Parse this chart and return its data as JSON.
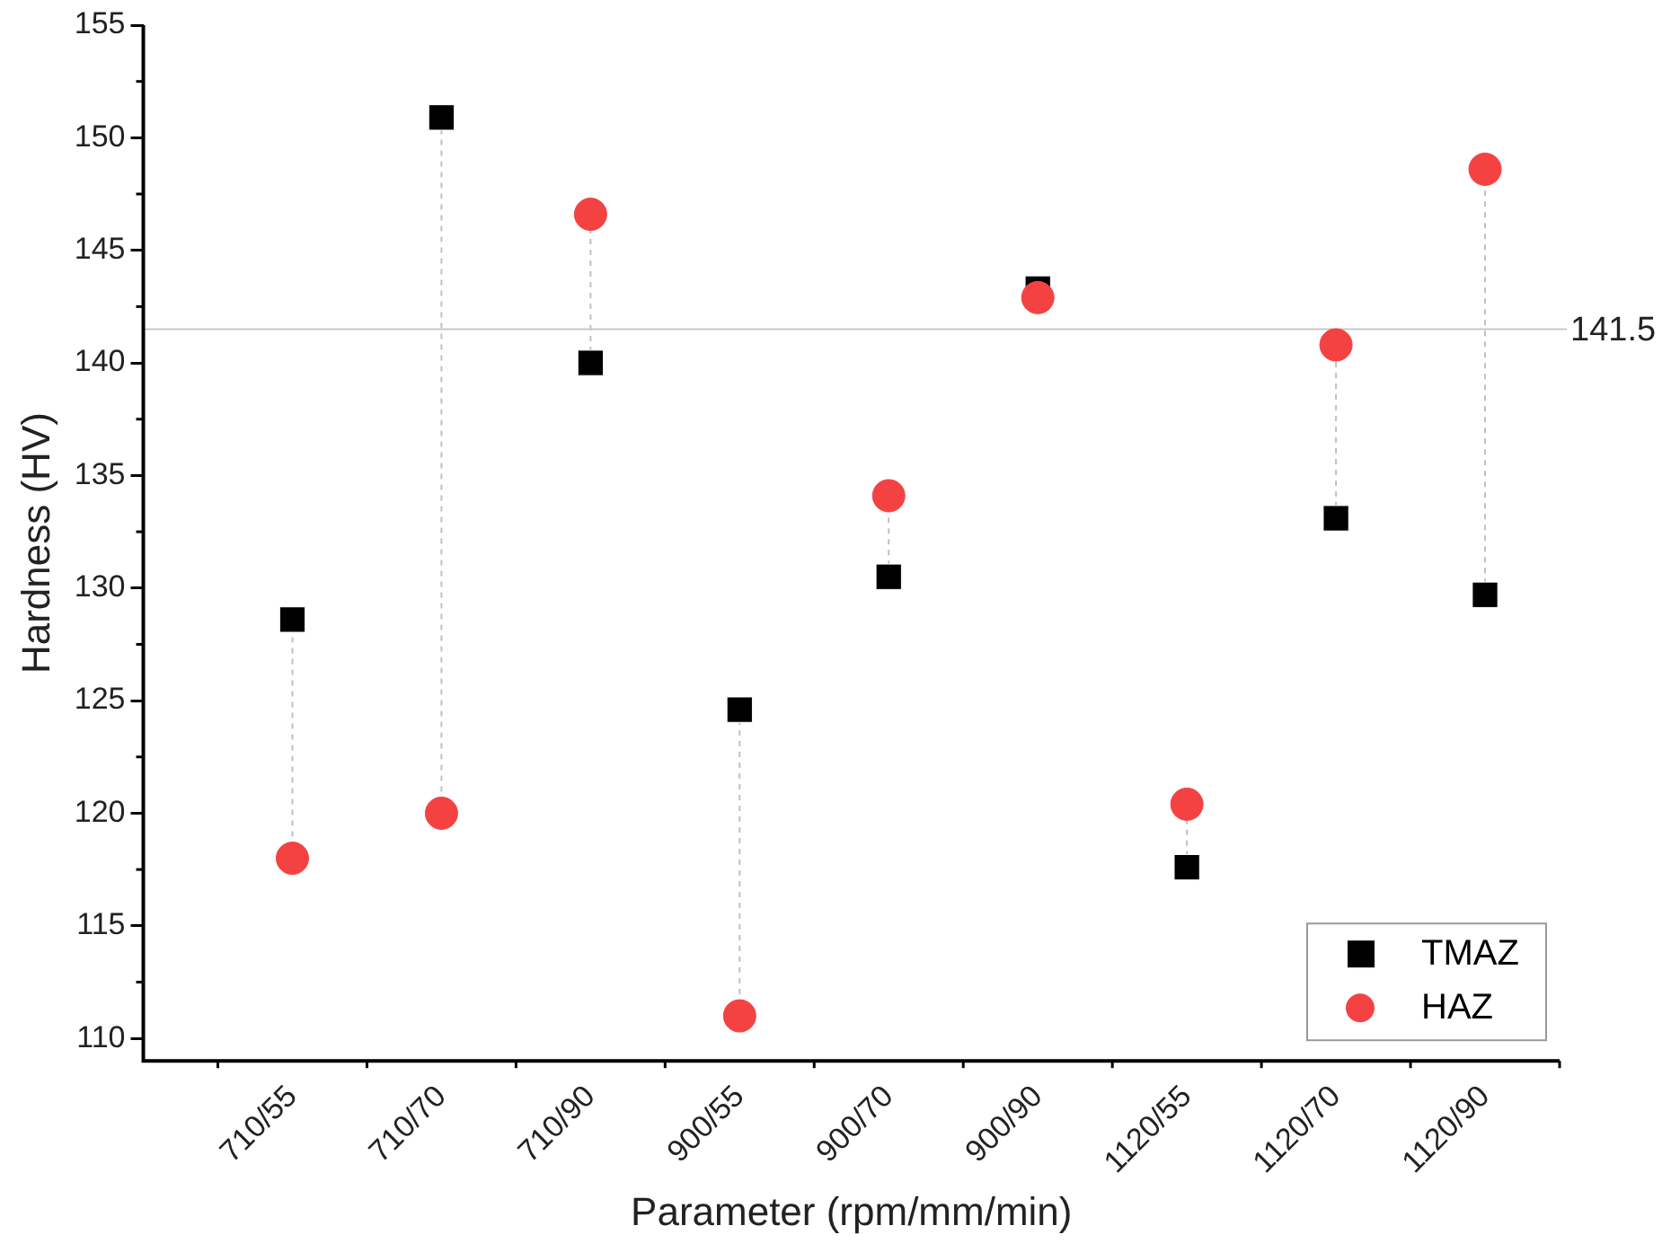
{
  "chart_data": {
    "type": "scatter",
    "xlabel": "Parameter (rpm/mm/min)",
    "ylabel": "Hardness (HV)",
    "categories": [
      "710/55",
      "710/70",
      "710/90",
      "900/55",
      "900/70",
      "900/90",
      "1120/55",
      "1120/70",
      "1120/90"
    ],
    "series": [
      {
        "name": "TMAZ",
        "color": "#000000",
        "marker": "square",
        "values": [
          128.6,
          150.9,
          140,
          124.6,
          130.5,
          143.3,
          117.6,
          133.1,
          129.7
        ]
      },
      {
        "name": "HAZ",
        "color": "#f44242",
        "marker": "circle",
        "values": [
          118,
          120,
          146.6,
          111,
          134.1,
          142.9,
          120.4,
          140.8,
          148.6
        ]
      }
    ],
    "ylim": [
      109,
      155
    ],
    "yticks": [
      110,
      115,
      120,
      125,
      130,
      135,
      140,
      145,
      150,
      155
    ],
    "ref_lines": [
      {
        "axis": "y",
        "value": 141.5,
        "label": "141.5",
        "color": "#c8c8c8"
      }
    ],
    "grid": false,
    "legend": "bottom right"
  }
}
